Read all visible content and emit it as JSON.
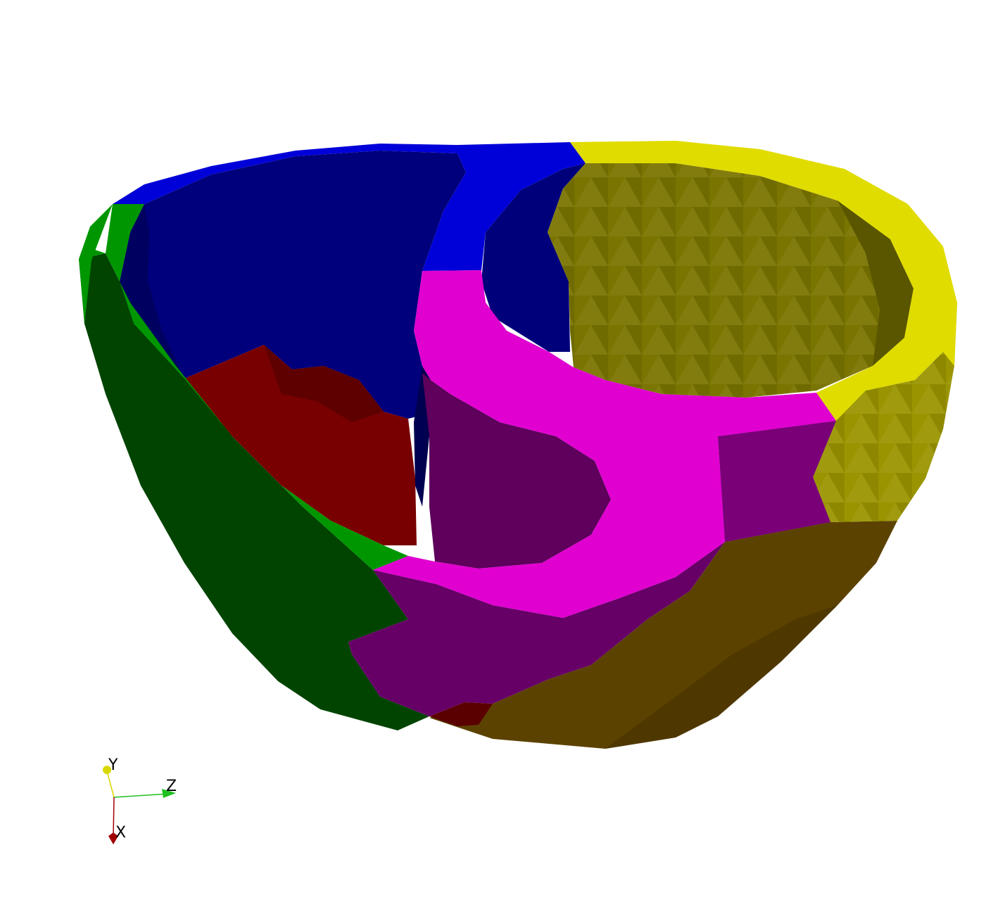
{
  "viewport": {
    "background": "#ffffff"
  },
  "model": {
    "regions": [
      {
        "name": "blue",
        "color": "#0000d8",
        "shade": "#00007a"
      },
      {
        "name": "green",
        "color": "#009a00",
        "shade": "#004000"
      },
      {
        "name": "red",
        "color": "#7a0000",
        "shade": "#5a0000"
      },
      {
        "name": "magenta",
        "color": "#e000d0",
        "shade": "#600060"
      },
      {
        "name": "yellow",
        "color": "#e0dc00",
        "shade": "#7a7600"
      },
      {
        "name": "olive-brown",
        "color": "#5e4200",
        "shade": "#4a3400"
      }
    ]
  },
  "orientation_axes": {
    "y_label": "Y",
    "z_label": "Z",
    "x_label": "X",
    "y_color": "#d8d800",
    "z_color": "#20c020",
    "x_color": "#a00000"
  }
}
